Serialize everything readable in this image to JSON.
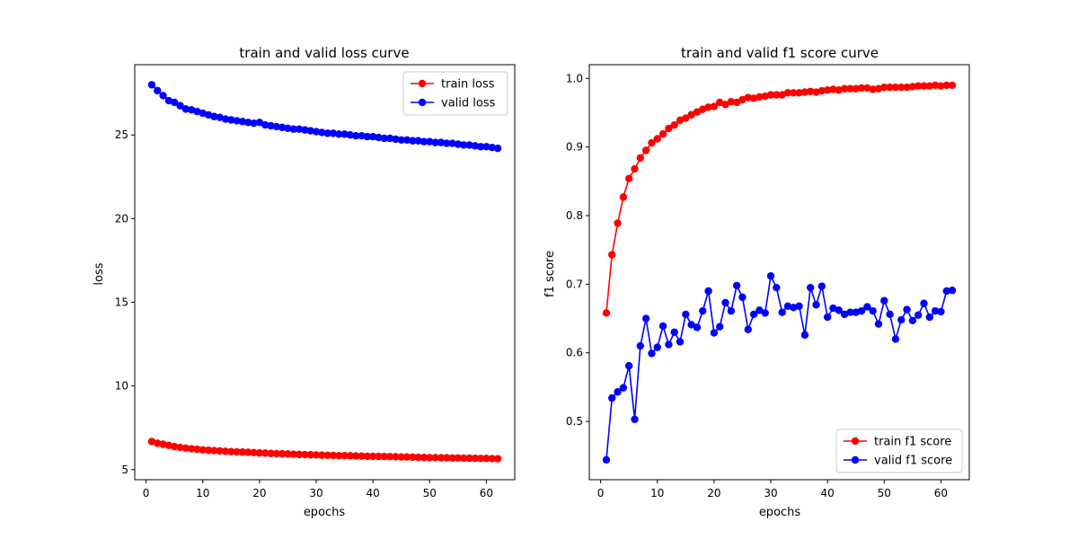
{
  "chart_data": [
    {
      "type": "line",
      "title": "train and valid loss curve",
      "xlabel": "epochs",
      "ylabel": "loss",
      "xlim": [
        -2,
        65
      ],
      "ylim": [
        4.4,
        29.2
      ],
      "xticks": [
        0,
        10,
        20,
        30,
        40,
        50,
        60
      ],
      "yticks": [
        5,
        10,
        15,
        20,
        25
      ],
      "grid": false,
      "legend": "top-right",
      "x": [
        1,
        2,
        3,
        4,
        5,
        6,
        7,
        8,
        9,
        10,
        11,
        12,
        13,
        14,
        15,
        16,
        17,
        18,
        19,
        20,
        21,
        22,
        23,
        24,
        25,
        26,
        27,
        28,
        29,
        30,
        31,
        32,
        33,
        34,
        35,
        36,
        37,
        38,
        39,
        40,
        41,
        42,
        43,
        44,
        45,
        46,
        47,
        48,
        49,
        50,
        51,
        52,
        53,
        54,
        55,
        56,
        57,
        58,
        59,
        60,
        61,
        62
      ],
      "series": [
        {
          "name": "train loss",
          "color": "#ff0000",
          "values": [
            6.68,
            6.58,
            6.52,
            6.45,
            6.38,
            6.33,
            6.29,
            6.25,
            6.22,
            6.18,
            6.16,
            6.14,
            6.12,
            6.1,
            6.08,
            6.06,
            6.05,
            6.04,
            6.02,
            6.0,
            5.99,
            5.97,
            5.96,
            5.95,
            5.94,
            5.92,
            5.91,
            5.9,
            5.89,
            5.88,
            5.87,
            5.86,
            5.85,
            5.84,
            5.84,
            5.83,
            5.82,
            5.81,
            5.8,
            5.8,
            5.79,
            5.79,
            5.78,
            5.77,
            5.76,
            5.76,
            5.75,
            5.74,
            5.73,
            5.72,
            5.72,
            5.71,
            5.71,
            5.7,
            5.7,
            5.69,
            5.69,
            5.68,
            5.67,
            5.67,
            5.66,
            5.65
          ]
        },
        {
          "name": "valid loss",
          "color": "#0000ff",
          "values": [
            28.0,
            27.65,
            27.35,
            27.05,
            26.95,
            26.75,
            26.55,
            26.5,
            26.4,
            26.3,
            26.2,
            26.1,
            26.05,
            25.95,
            25.9,
            25.85,
            25.8,
            25.75,
            25.7,
            25.75,
            25.6,
            25.55,
            25.5,
            25.45,
            25.4,
            25.35,
            25.35,
            25.3,
            25.25,
            25.2,
            25.15,
            25.1,
            25.1,
            25.05,
            25.05,
            25.0,
            24.95,
            24.95,
            24.9,
            24.9,
            24.85,
            24.8,
            24.8,
            24.75,
            24.7,
            24.7,
            24.65,
            24.65,
            24.6,
            24.6,
            24.55,
            24.55,
            24.5,
            24.5,
            24.45,
            24.4,
            24.4,
            24.35,
            24.3,
            24.3,
            24.25,
            24.2
          ]
        }
      ]
    },
    {
      "type": "line",
      "title": "train and valid f1 score curve",
      "xlabel": "epochs",
      "ylabel": "f1 score",
      "xlim": [
        -2,
        65
      ],
      "ylim": [
        0.415,
        1.02
      ],
      "xticks": [
        0,
        10,
        20,
        30,
        40,
        50,
        60
      ],
      "yticks": [
        0.5,
        0.6,
        0.7,
        0.8,
        0.9,
        1.0
      ],
      "ytick_labels": [
        "0.5",
        "0.6",
        "0.7",
        "0.8",
        "0.9",
        "1.0"
      ],
      "grid": false,
      "legend": "bottom-right",
      "x": [
        1,
        2,
        3,
        4,
        5,
        6,
        7,
        8,
        9,
        10,
        11,
        12,
        13,
        14,
        15,
        16,
        17,
        18,
        19,
        20,
        21,
        22,
        23,
        24,
        25,
        26,
        27,
        28,
        29,
        30,
        31,
        32,
        33,
        34,
        35,
        36,
        37,
        38,
        39,
        40,
        41,
        42,
        43,
        44,
        45,
        46,
        47,
        48,
        49,
        50,
        51,
        52,
        53,
        54,
        55,
        56,
        57,
        58,
        59,
        60,
        61,
        62
      ],
      "series": [
        {
          "name": "train f1 score",
          "color": "#ff0000",
          "values": [
            0.658,
            0.743,
            0.789,
            0.827,
            0.854,
            0.868,
            0.884,
            0.895,
            0.906,
            0.912,
            0.919,
            0.927,
            0.932,
            0.939,
            0.942,
            0.947,
            0.951,
            0.955,
            0.958,
            0.959,
            0.965,
            0.962,
            0.966,
            0.965,
            0.969,
            0.972,
            0.971,
            0.973,
            0.974,
            0.976,
            0.976,
            0.976,
            0.979,
            0.979,
            0.979,
            0.98,
            0.981,
            0.98,
            0.982,
            0.983,
            0.984,
            0.983,
            0.985,
            0.985,
            0.985,
            0.986,
            0.986,
            0.984,
            0.985,
            0.987,
            0.987,
            0.987,
            0.987,
            0.987,
            0.988,
            0.989,
            0.989,
            0.989,
            0.99,
            0.989,
            0.99,
            0.99
          ]
        },
        {
          "name": "valid f1 score",
          "color": "#0000ff",
          "values": [
            0.444,
            0.534,
            0.543,
            0.549,
            0.581,
            0.503,
            0.61,
            0.65,
            0.599,
            0.608,
            0.639,
            0.612,
            0.63,
            0.616,
            0.656,
            0.641,
            0.637,
            0.661,
            0.69,
            0.629,
            0.638,
            0.673,
            0.661,
            0.698,
            0.681,
            0.634,
            0.656,
            0.662,
            0.658,
            0.712,
            0.695,
            0.659,
            0.668,
            0.666,
            0.668,
            0.626,
            0.695,
            0.67,
            0.697,
            0.652,
            0.665,
            0.662,
            0.656,
            0.659,
            0.659,
            0.661,
            0.667,
            0.661,
            0.642,
            0.676,
            0.656,
            0.62,
            0.648,
            0.663,
            0.647,
            0.655,
            0.672,
            0.652,
            0.661,
            0.66,
            0.69,
            0.691
          ]
        }
      ]
    }
  ]
}
